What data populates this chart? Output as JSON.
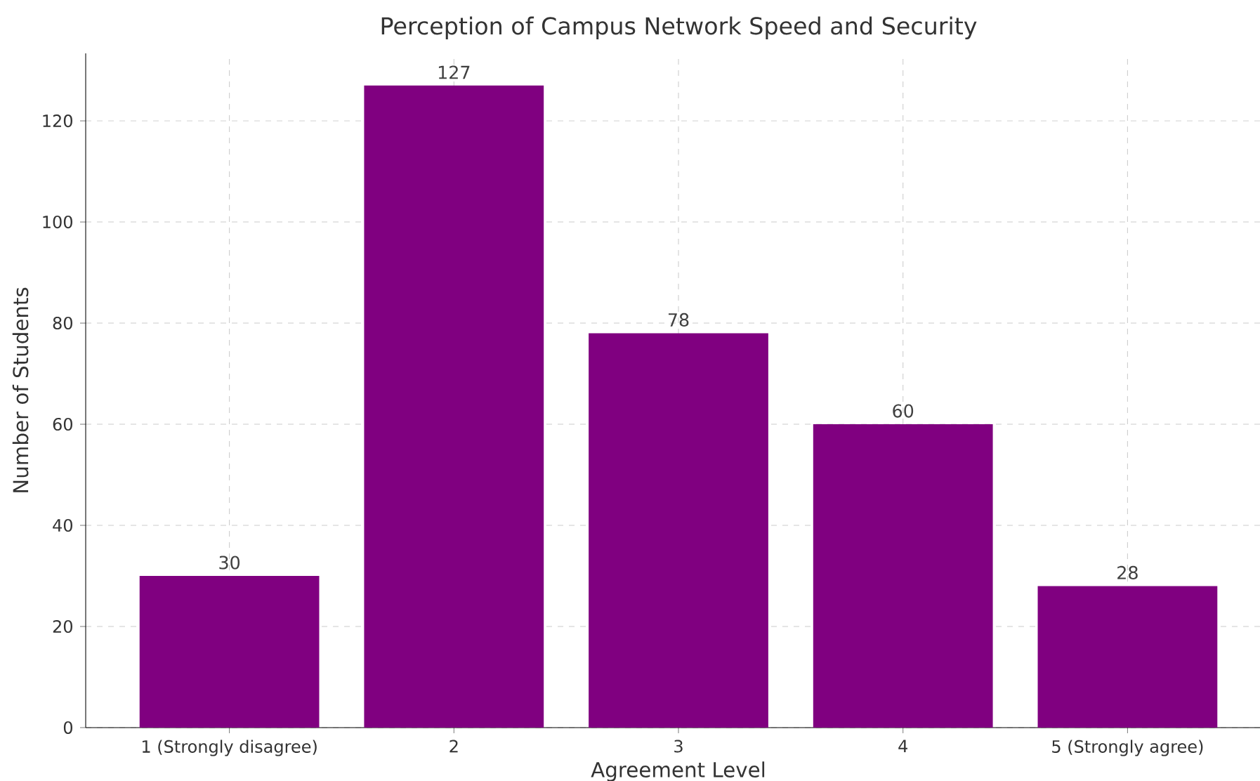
{
  "chart_data": {
    "type": "bar",
    "title": "Perception of Campus Network Speed and Security",
    "xlabel": "Agreement Level",
    "ylabel": "Number of Students",
    "categories": [
      "1 (Strongly disagree)",
      "2",
      "3",
      "4",
      "5 (Strongly agree)"
    ],
    "values": [
      30,
      127,
      78,
      60,
      28
    ],
    "color": "#800080",
    "ylim": [
      0,
      133.35
    ],
    "yticks": [
      0,
      20,
      40,
      60,
      80,
      100,
      120
    ],
    "grid": true,
    "data_labels": true
  }
}
